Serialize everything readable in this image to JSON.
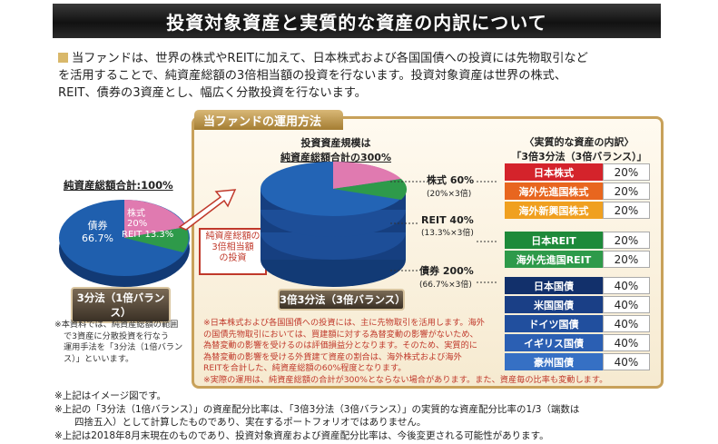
{
  "banner": {
    "title": "投資対象資産と実質的な資産の内訳について"
  },
  "intro": {
    "line1": "当ファンドは、世界の株式やREITに加えて、日本株式および各国国債への投資には先物取引など",
    "line2": "を活用することで、純資産総額の3倍相当額の投資を行ないます。投資対象資産は世界の株式、",
    "line3": "REIT、債券の3資産とし、幅広く分散投資を行ないます。"
  },
  "panel": {
    "tab": "当ファンドの運用方法"
  },
  "left_pie": {
    "title": "純資産総額合計:100%",
    "bond_name": "債券",
    "bond_pct": "66.7%",
    "stock_name": "株式",
    "stock_pct": "20%",
    "reit_label": "REIT 13.3%",
    "badge": "3分法（1倍バランス）",
    "colors": {
      "bond": "#1f5fae",
      "stock": "#e07ab0",
      "reit": "#2e9a4a"
    }
  },
  "redbox": {
    "l1": "純資産総額の",
    "l2": "3倍相当額",
    "l3": "の投資"
  },
  "big_pie": {
    "top1": "投資資産規模は",
    "top2": "純資産総額合計の300%",
    "badge": "3倍3分法（3倍バランス）"
  },
  "mid_labels": {
    "stock_main": "株式 60%",
    "stock_sub": "(20%×3倍)",
    "reit_main": "REIT 40%",
    "reit_sub": "(13.3%×3倍)",
    "bond_main": "債券 200%",
    "bond_sub": "(66.7%×3倍)"
  },
  "breakdown": {
    "head1": "〈実質的な資産の内訳〉",
    "head2": "「3倍3分法（3倍バランス）」",
    "stocks": [
      {
        "name": "日本株式",
        "pct": "20%",
        "color": "#d4232b"
      },
      {
        "name": "海外先進国株式",
        "pct": "20%",
        "color": "#e8661f"
      },
      {
        "name": "海外新興国株式",
        "pct": "20%",
        "color": "#f0a020"
      }
    ],
    "reits": [
      {
        "name": "日本REIT",
        "pct": "20%",
        "color": "#1d8a3a"
      },
      {
        "name": "海外先進国REIT",
        "pct": "20%",
        "color": "#2e9a4a"
      }
    ],
    "bonds": [
      {
        "name": "日本国債",
        "pct": "40%",
        "color": "#12306b"
      },
      {
        "name": "米国国債",
        "pct": "40%",
        "color": "#1a3f86"
      },
      {
        "name": "ドイツ国債",
        "pct": "40%",
        "color": "#214f9e"
      },
      {
        "name": "イギリス国債",
        "pct": "40%",
        "color": "#2b5fb3"
      },
      {
        "name": "豪州国債",
        "pct": "40%",
        "color": "#3670c4"
      }
    ]
  },
  "red_notes": {
    "n1": "※日本株式および各国国債への投資には、主に先物取引を活用します。海外",
    "n2": "の国債先物取引においては、買建額に対する為替変動の影響がないため、",
    "n3": "為替変動の影響を受けるのは評価損益分となります。そのため、実質的に",
    "n4": "為替変動の影響を受ける外貨建て資産の割合は、海外株式および海外",
    "n5": "REITを合計した、純資産総額の60%程度となります。",
    "n6": "※実際の運用は、純資産総額の合計が300%とならない場合があります。また、資産毎の比率も変動します。"
  },
  "left_note": {
    "l1": "※本資料では、純資産総額の範囲",
    "l2": "で3資産に分散投資を行なう",
    "l3": "運用手法を「3分法（1倍バラン",
    "l4": "ス）」といいます。"
  },
  "footer": {
    "f1": "※上記はイメージ図です。",
    "f2": "※上記の「3分法（1倍バランス）」の資産配分比率は、「3倍3分法（3倍バランス）」の実質的な資産配分比率の1/3（端数は",
    "f3": "四捨五入）として計算したものであり、実在するポートフォリオではありません。",
    "f4": "※上記は2018年8月末現在のものであり、投資対象資産および資産配分比率は、今後変更される可能性があります。"
  }
}
